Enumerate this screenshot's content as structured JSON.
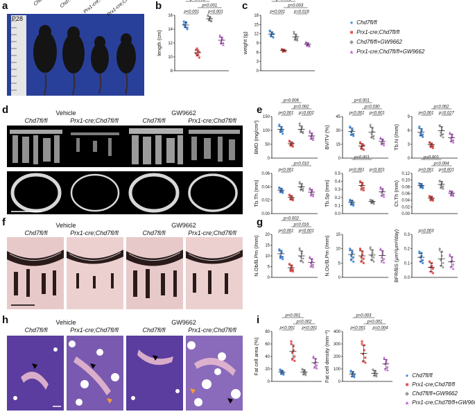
{
  "panel_letters": [
    "a",
    "b",
    "c",
    "d",
    "e",
    "f",
    "g",
    "h",
    "i"
  ],
  "colors": {
    "ctrl": "#4a90e2",
    "ko": "#e8514d",
    "ctrl_gw": "#9a9a9a",
    "ko_gw": "#c566d8"
  },
  "panel_a": {
    "age": "P28",
    "labels": [
      "Chd7fl/fl",
      "Chd7fl/fl+GW9662",
      "Prx1-cre;Chd7fl/fl",
      "Prx1-cre;Chd7fl/fl+GW9662"
    ]
  },
  "legend": {
    "items": [
      {
        "label": "Chd7fl/fl",
        "symbol": "●",
        "color_key": "ctrl"
      },
      {
        "label": "Prx1-cre;Chd7fl/fl",
        "symbol": "■",
        "color_key": "ko"
      },
      {
        "label": "Chd7fl/fl+GW9662",
        "symbol": "◆",
        "color_key": "ctrl_gw"
      },
      {
        "label": "Prx1-cre;Chd7fl/fl+GW9662",
        "symbol": "▲",
        "color_key": "ko_gw"
      }
    ]
  },
  "group_headers": {
    "vehicle": "Vehicle",
    "gw": "GW9662",
    "ctrl": "Chd7fl/fl",
    "ko": "Prx1-cre;Chd7fl/fl"
  },
  "chart_data": [
    {
      "id": "b",
      "type": "scatter",
      "ylabel": "length (cm)",
      "ylim": [
        8,
        16
      ],
      "yticks": [
        8,
        10,
        12,
        14,
        16
      ],
      "values": [
        14.6,
        10.6,
        15.5,
        12.4
      ],
      "points": [
        [
          15.1,
          14.3,
          14.9,
          14.0,
          14.7,
          14.5,
          15.0,
          14.2
        ],
        [
          11.0,
          10.2,
          10.8,
          9.9,
          10.5,
          11.2,
          10.3,
          10.7
        ],
        [
          16.0,
          15.3,
          15.7,
          15.1,
          15.9,
          15.4,
          15.6,
          15.2
        ],
        [
          13.1,
          11.9,
          12.7,
          11.7,
          12.9,
          12.2,
          12.5,
          12.0
        ]
      ],
      "comparisons": [
        {
          "pair": [
            1,
            2
          ],
          "p": "p<0.001",
          "level": 1
        },
        {
          "pair": [
            3,
            4
          ],
          "p": "p<0.001",
          "level": 1
        },
        {
          "pair": [
            2,
            4
          ],
          "p": "p<0.001",
          "level": 2
        },
        {
          "pair": [
            1,
            3
          ],
          "p": "p<0.001",
          "level": 3
        }
      ]
    },
    {
      "id": "c",
      "type": "scatter",
      "ylabel": "weight (g)",
      "ylim": [
        0,
        18
      ],
      "yticks": [
        0,
        3,
        6,
        9,
        12,
        15,
        18
      ],
      "values": [
        11.9,
        6.6,
        11.0,
        8.6
      ],
      "points": [
        [
          13.0,
          11.2,
          12.4,
          10.8,
          12.8,
          11.6,
          12.2,
          11.9
        ],
        [
          6.9,
          6.2,
          6.7,
          6.4,
          7.0,
          6.5,
          6.8,
          6.3
        ],
        [
          12.6,
          10.0,
          11.5,
          9.8,
          12.0,
          10.6,
          11.2,
          10.4
        ],
        [
          9.3,
          8.1,
          8.9,
          7.9,
          9.0,
          8.4,
          8.7,
          8.2
        ]
      ],
      "comparisons": [
        {
          "pair": [
            1,
            2
          ],
          "p": "p<0.001",
          "level": 1
        },
        {
          "pair": [
            3,
            4
          ],
          "p": "p=0.016",
          "level": 1
        },
        {
          "pair": [
            2,
            4
          ],
          "p": "p=0.003",
          "level": 2
        },
        {
          "pair": [
            1,
            3
          ],
          "p": "p<0.001",
          "level": 3
        }
      ]
    },
    {
      "id": "e1",
      "type": "scatter",
      "ylabel": "BMD (mg/cm³)",
      "ylim": [
        0,
        150
      ],
      "yticks": [
        0,
        50,
        100,
        150
      ],
      "values": [
        104,
        52,
        104,
        80
      ],
      "points": [
        [
          120,
          95,
          110,
          88,
          116,
          100,
          106,
          98
        ],
        [
          60,
          45,
          56,
          42,
          62,
          50,
          48,
          53
        ],
        [
          125,
          96,
          112,
          90,
          118,
          100,
          108,
          95
        ],
        [
          98,
          70,
          88,
          66,
          92,
          78,
          82,
          74
        ]
      ],
      "comparisons": [
        {
          "pair": [
            1,
            2
          ],
          "p": "p<0.001",
          "level": 1
        },
        {
          "pair": [
            3,
            4
          ],
          "p": "p=0.002",
          "level": 1
        },
        {
          "pair": [
            2,
            4
          ],
          "p": "p=0.002",
          "level": 2
        },
        {
          "pair": [
            1,
            3
          ],
          "p": "p=0.006",
          "level": 3
        }
      ]
    },
    {
      "id": "e2",
      "type": "scatter",
      "ylabel": "BV/TV (%)",
      "ylim": [
        0,
        45
      ],
      "yticks": [
        0,
        15,
        30,
        45
      ],
      "values": [
        29,
        13,
        28,
        18
      ],
      "points": [
        [
          34,
          25,
          31,
          24,
          33,
          28,
          30,
          26
        ],
        [
          16,
          10,
          15,
          9,
          17,
          12,
          13,
          14
        ],
        [
          36,
          22,
          32,
          21,
          34,
          26,
          29,
          24
        ],
        [
          22,
          15,
          20,
          14,
          21,
          17,
          19,
          16
        ]
      ],
      "comparisons": [
        {
          "pair": [
            1,
            2
          ],
          "p": "p<0.001",
          "level": 1
        },
        {
          "pair": [
            3,
            4
          ],
          "p": "p<0.001",
          "level": 1
        },
        {
          "pair": [
            2,
            4
          ],
          "p": "p=0.030",
          "level": 2
        },
        {
          "pair": [
            1,
            3
          ],
          "p": "p<0.001",
          "level": 3
        }
      ]
    },
    {
      "id": "e3",
      "type": "scatter",
      "ylabel": "Tb.N (/mm)",
      "ylim": [
        0,
        9
      ],
      "yticks": [
        0,
        3,
        6,
        9
      ],
      "values": [
        5.6,
        2.9,
        5.9,
        4.4
      ],
      "points": [
        [
          6.8,
          4.9,
          6.2,
          4.6,
          6.5,
          5.3,
          5.9,
          5.1
        ],
        [
          3.4,
          2.4,
          3.1,
          2.2,
          3.3,
          2.7,
          2.9,
          2.6
        ],
        [
          7.1,
          4.8,
          6.6,
          4.5,
          6.9,
          5.5,
          6.1,
          5.2
        ],
        [
          5.5,
          3.6,
          5.1,
          3.4,
          5.3,
          4.2,
          4.7,
          3.9
        ]
      ],
      "comparisons": [
        {
          "pair": [
            1,
            2
          ],
          "p": "p<0.001",
          "level": 1
        },
        {
          "pair": [
            3,
            4
          ],
          "p": "p=0.027",
          "level": 1
        },
        {
          "pair": [
            2,
            4
          ],
          "p": "p=0.002",
          "level": 2
        }
      ]
    },
    {
      "id": "e4",
      "type": "scatter",
      "ylabel": "Tb.Th (mm)",
      "ylim": [
        0.0,
        0.06
      ],
      "yticks": [
        0.0,
        0.02,
        0.04,
        0.06
      ],
      "values": [
        0.035,
        0.024,
        0.04,
        0.032
      ],
      "points": [
        [
          0.039,
          0.032,
          0.037,
          0.031,
          0.038,
          0.034,
          0.036,
          0.033
        ],
        [
          0.027,
          0.021,
          0.026,
          0.02,
          0.028,
          0.023,
          0.025,
          0.022
        ],
        [
          0.047,
          0.035,
          0.044,
          0.034,
          0.045,
          0.039,
          0.041,
          0.037
        ],
        [
          0.038,
          0.027,
          0.035,
          0.026,
          0.036,
          0.031,
          0.033,
          0.029
        ]
      ],
      "comparisons": [
        {
          "pair": [
            1,
            2
          ],
          "p": "p<0.001",
          "level": 1
        },
        {
          "pair": [
            2,
            4
          ],
          "p": "p=0.010",
          "level": 2
        }
      ]
    },
    {
      "id": "e5",
      "type": "scatter",
      "ylabel": "Tb.Sp (mm)",
      "ylim": [
        0.0,
        0.5
      ],
      "yticks": [
        0.0,
        0.1,
        0.2,
        0.3,
        0.4,
        0.5
      ],
      "values": [
        0.14,
        0.35,
        0.15,
        0.27
      ],
      "points": [
        [
          0.17,
          0.11,
          0.16,
          0.1,
          0.16,
          0.13,
          0.15,
          0.12
        ],
        [
          0.4,
          0.3,
          0.38,
          0.29,
          0.39,
          0.34,
          0.36,
          0.32
        ],
        [
          0.17,
          0.13,
          0.16,
          0.12,
          0.17,
          0.14,
          0.15,
          0.14
        ],
        [
          0.33,
          0.22,
          0.3,
          0.21,
          0.31,
          0.26,
          0.28,
          0.24
        ]
      ],
      "comparisons": [
        {
          "pair": [
            1,
            2
          ],
          "p": "p<0.001",
          "level": 1
        },
        {
          "pair": [
            3,
            4
          ],
          "p": "p<0.001",
          "level": 1
        },
        {
          "pair": [
            1,
            3
          ],
          "p": "p<0.001",
          "level": 3
        }
      ]
    },
    {
      "id": "e6",
      "type": "scatter",
      "ylabel": "Ct.Th (mm)",
      "ylim": [
        0.0,
        0.12
      ],
      "yticks": [
        0.0,
        0.02,
        0.04,
        0.06,
        0.08,
        0.1,
        0.12
      ],
      "values": [
        0.084,
        0.046,
        0.087,
        0.061
      ],
      "points": [
        [
          0.09,
          0.078,
          0.088,
          0.076,
          0.089,
          0.082,
          0.086,
          0.08
        ],
        [
          0.052,
          0.04,
          0.05,
          0.039,
          0.051,
          0.045,
          0.048,
          0.043
        ],
        [
          0.098,
          0.076,
          0.094,
          0.074,
          0.096,
          0.084,
          0.09,
          0.081
        ],
        [
          0.068,
          0.054,
          0.066,
          0.053,
          0.067,
          0.06,
          0.063,
          0.057
        ]
      ],
      "comparisons": [
        {
          "pair": [
            1,
            2
          ],
          "p": "p<0.001",
          "level": 1
        },
        {
          "pair": [
            3,
            4
          ],
          "p": "p<0.001",
          "level": 1
        },
        {
          "pair": [
            2,
            4
          ],
          "p": "p=0.004",
          "level": 2
        },
        {
          "pair": [
            1,
            3
          ],
          "p": "p=0.001",
          "level": 3
        }
      ]
    },
    {
      "id": "g1",
      "type": "scatter",
      "ylabel": "N.Ob/B.Pm (/mm)",
      "ylim": [
        0,
        20
      ],
      "yticks": [
        0,
        5,
        10,
        15,
        20
      ],
      "values": [
        11,
        4.5,
        10,
        7
      ],
      "points": [
        [
          13,
          9,
          12,
          8.5,
          12.5,
          10,
          11.5,
          9.5
        ],
        [
          6,
          3,
          5.5,
          2.8,
          6.2,
          4,
          4.8,
          3.6
        ],
        [
          13.5,
          7.5,
          12,
          7,
          12.8,
          9.5,
          11,
          8.8
        ],
        [
          9.5,
          5,
          8.5,
          4.8,
          9,
          6.5,
          7.5,
          6
        ]
      ],
      "comparisons": [
        {
          "pair": [
            1,
            2
          ],
          "p": "p<0.001",
          "level": 1
        },
        {
          "pair": [
            3,
            4
          ],
          "p": "p<0.001",
          "level": 1
        },
        {
          "pair": [
            2,
            4
          ],
          "p": "p=0.016",
          "level": 2
        },
        {
          "pair": [
            1,
            3
          ],
          "p": "p=0.002",
          "level": 3
        }
      ]
    },
    {
      "id": "g2",
      "type": "scatter",
      "ylabel": "N.Oc/B.Pm (/mm)",
      "ylim": [
        0,
        15
      ],
      "yticks": [
        0,
        5,
        10,
        15
      ],
      "values": [
        8,
        7.5,
        7.8,
        7.6
      ],
      "points": [
        [
          10,
          6,
          9,
          5.5,
          9.5,
          7.5,
          8.5,
          7
        ],
        [
          10,
          5.5,
          9,
          5,
          9.5,
          7,
          8,
          6.5
        ],
        [
          10.5,
          6,
          9.5,
          5.5,
          10,
          7.5,
          8.5,
          7
        ],
        [
          10,
          5.5,
          9,
          5.2,
          9.7,
          7,
          8.2,
          6.5
        ]
      ],
      "comparisons": []
    },
    {
      "id": "g3",
      "type": "scatter",
      "ylabel": "BFR/BS (μm³/μm²/day)",
      "ylim": [
        0.0,
        0.3
      ],
      "yticks": [
        0.0,
        0.1,
        0.2,
        0.3
      ],
      "values": [
        0.14,
        0.07,
        0.13,
        0.11
      ],
      "points": [
        [
          0.18,
          0.11,
          0.17,
          0.1,
          0.17,
          0.14,
          0.15,
          0.12
        ],
        [
          0.11,
          0.04,
          0.1,
          0.03,
          0.11,
          0.07,
          0.08,
          0.06
        ],
        [
          0.2,
          0.08,
          0.18,
          0.07,
          0.19,
          0.12,
          0.15,
          0.1
        ],
        [
          0.16,
          0.07,
          0.14,
          0.06,
          0.15,
          0.11,
          0.12,
          0.09
        ]
      ],
      "comparisons": [
        {
          "pair": [
            1,
            2
          ],
          "p": "p=0.003",
          "level": 1
        }
      ]
    },
    {
      "id": "i1",
      "type": "scatter",
      "ylabel": "Fat cell area (%)",
      "ylim": [
        0,
        80
      ],
      "yticks": [
        0,
        20,
        40,
        60,
        80
      ],
      "values": [
        15,
        48,
        15,
        30
      ],
      "points": [
        [
          19,
          12,
          17,
          11,
          18,
          15,
          16,
          13
        ],
        [
          64,
          35,
          56,
          33,
          60,
          46,
          50,
          40
        ],
        [
          20,
          11,
          18,
          10,
          19,
          15,
          16,
          13
        ],
        [
          40,
          22,
          36,
          21,
          38,
          29,
          32,
          26
        ]
      ],
      "comparisons": [
        {
          "pair": [
            1,
            2
          ],
          "p": "p<0.001",
          "level": 1
        },
        {
          "pair": [
            3,
            4
          ],
          "p": "p<0.001",
          "level": 1
        },
        {
          "pair": [
            2,
            4
          ],
          "p": "p=0.002",
          "level": 2
        },
        {
          "pair": [
            1,
            3
          ],
          "p": "p<0.001",
          "level": 3
        }
      ]
    },
    {
      "id": "i2",
      "type": "scatter",
      "ylabel": "Fat cell density (mm⁻²)",
      "ylim": [
        0,
        400
      ],
      "yticks": [
        0,
        100,
        200,
        300,
        400
      ],
      "values": [
        60,
        225,
        65,
        140
      ],
      "points": [
        [
          85,
          40,
          75,
          35,
          80,
          60,
          70,
          50
        ],
        [
          320,
          160,
          290,
          150,
          300,
          220,
          250,
          190
        ],
        [
          95,
          45,
          85,
          40,
          90,
          65,
          78,
          55
        ],
        [
          190,
          95,
          170,
          90,
          180,
          140,
          155,
          115
        ]
      ],
      "comparisons": [
        {
          "pair": [
            1,
            2
          ],
          "p": "p<0.001",
          "level": 1
        },
        {
          "pair": [
            3,
            4
          ],
          "p": "p=0.004",
          "level": 1
        },
        {
          "pair": [
            2,
            4
          ],
          "p": "p<0.001",
          "level": 2
        },
        {
          "pair": [
            1,
            3
          ],
          "p": "p=0.003",
          "level": 3
        }
      ]
    }
  ]
}
